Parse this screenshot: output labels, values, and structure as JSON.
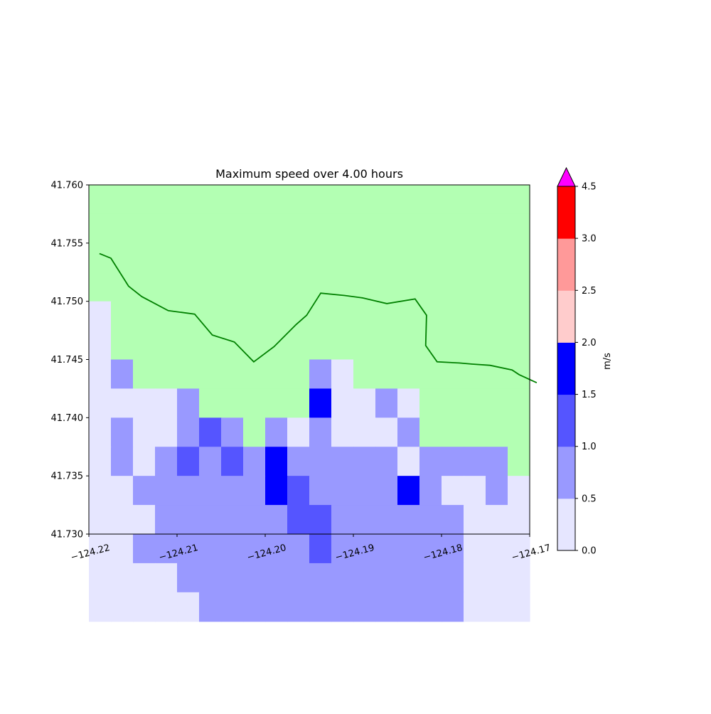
{
  "chart_data": {
    "type": "heatmap",
    "title": "Maximum speed over 4.00 hours",
    "xlabel": "",
    "ylabel": "",
    "xlim": [
      -124.22,
      -124.17
    ],
    "ylim": [
      41.73,
      41.76
    ],
    "xticks": [
      "−124.22",
      "−124.21",
      "−124.20",
      "−124.19",
      "−124.18",
      "−124.17"
    ],
    "xtick_values": [
      -124.22,
      -124.21,
      -124.2,
      -124.19,
      -124.18,
      -124.17
    ],
    "yticks": [
      "41.730",
      "41.735",
      "41.740",
      "41.745",
      "41.750",
      "41.755",
      "41.760"
    ],
    "ytick_values": [
      41.73,
      41.735,
      41.74,
      41.745,
      41.75,
      41.755,
      41.76
    ],
    "grid": false,
    "grid_cell_size": {
      "dx": 0.0025,
      "dy": 0.0025
    },
    "land_color": "#b3ffb3",
    "shoreline_color": "#008000",
    "colorbar": {
      "label": "m/s",
      "levels": [
        0.0,
        0.5,
        1.0,
        1.5,
        2.0,
        2.5,
        3.0,
        4.5
      ],
      "tick_labels": [
        "0.0",
        "0.5",
        "1.0",
        "1.5",
        "2.0",
        "2.5",
        "3.0",
        "4.5"
      ],
      "colors": [
        "#e6e6ff",
        "#9999ff",
        "#5555ff",
        "#0000ff",
        "#ffcccc",
        "#ff9999",
        "#ff0000"
      ],
      "extend_color": "#ff00ff"
    },
    "legend_rows_note": "rows from top (41.760) to bottom (41.730); columns from left (-124.22) to right (-124.17); L = land, numbers = colorbar bin index (0: 0.0-0.5, 1: 0.5-1.0, 2: 1.0-1.5, 3: 1.5-2.0)",
    "cells": [
      [
        "L",
        "L",
        "L",
        "L",
        "L",
        "L",
        "L",
        "L",
        "L",
        "L",
        "L",
        "L",
        "L",
        "L",
        "L",
        "L",
        "L",
        "L",
        "L",
        "L"
      ],
      [
        "L",
        "L",
        "L",
        "L",
        "L",
        "L",
        "L",
        "L",
        "L",
        "L",
        "L",
        "L",
        "L",
        "L",
        "L",
        "L",
        "L",
        "L",
        "L",
        "L"
      ],
      [
        "L",
        "L",
        "L",
        "L",
        "L",
        "L",
        "L",
        "L",
        "L",
        "L",
        "L",
        "L",
        "L",
        "L",
        "L",
        "L",
        "L",
        "L",
        "L",
        "L"
      ],
      [
        "L",
        "L",
        "L",
        "L",
        "L",
        "L",
        "L",
        "L",
        "L",
        "L",
        "L",
        "L",
        "L",
        "L",
        "L",
        "L",
        "L",
        "L",
        "L",
        "L"
      ],
      [
        0,
        "L",
        "L",
        "L",
        "L",
        "L",
        "L",
        "L",
        "L",
        "L",
        "L",
        "L",
        "L",
        "L",
        "L",
        "L",
        "L",
        "L",
        "L",
        "L"
      ],
      [
        0,
        "L",
        "L",
        "L",
        "L",
        "L",
        "L",
        "L",
        "L",
        "L",
        "L",
        "L",
        "L",
        "L",
        "L",
        "L",
        "L",
        "L",
        "L",
        "L"
      ],
      [
        0,
        1,
        "L",
        "L",
        "L",
        "L",
        "L",
        "L",
        "L",
        "L",
        1,
        0,
        "L",
        "L",
        "L",
        "L",
        "L",
        "L",
        "L",
        "L"
      ],
      [
        0,
        0,
        0,
        0,
        1,
        "L",
        "L",
        "L",
        "L",
        "L",
        3,
        0,
        0,
        1,
        0,
        "L",
        "L",
        "L",
        "L",
        "L"
      ],
      [
        0,
        1,
        0,
        0,
        1,
        2,
        1,
        "L",
        1,
        0,
        1,
        0,
        0,
        0,
        1,
        "L",
        "L",
        "L",
        "L",
        "L"
      ],
      [
        0,
        1,
        0,
        1,
        2,
        1,
        2,
        1,
        3,
        1,
        1,
        1,
        1,
        1,
        0,
        1,
        1,
        1,
        1,
        "L"
      ],
      [
        0,
        0,
        1,
        1,
        1,
        1,
        1,
        1,
        3,
        2,
        1,
        1,
        1,
        1,
        3,
        1,
        0,
        0,
        1,
        0
      ],
      [
        0,
        0,
        0,
        1,
        1,
        1,
        1,
        1,
        1,
        2,
        2,
        1,
        1,
        1,
        1,
        1,
        1,
        0,
        0,
        0
      ],
      [
        0,
        0,
        1,
        1,
        1,
        1,
        1,
        1,
        1,
        1,
        2,
        1,
        1,
        1,
        1,
        1,
        1,
        0,
        0,
        0
      ],
      [
        0,
        0,
        0,
        0,
        1,
        1,
        1,
        1,
        1,
        1,
        1,
        1,
        1,
        1,
        1,
        1,
        1,
        0,
        0,
        0
      ],
      [
        0,
        0,
        0,
        0,
        0,
        1,
        1,
        1,
        1,
        1,
        1,
        1,
        1,
        1,
        1,
        1,
        1,
        0,
        0,
        0
      ]
    ],
    "shoreline": [
      [
        -124.2188,
        41.7541
      ],
      [
        -124.2175,
        41.7537
      ],
      [
        -124.2155,
        41.7513
      ],
      [
        -124.214,
        41.7504
      ],
      [
        -124.211,
        41.7492
      ],
      [
        -124.208,
        41.7489
      ],
      [
        -124.206,
        41.7471
      ],
      [
        -124.2035,
        41.7465
      ],
      [
        -124.2013,
        41.7448
      ],
      [
        -124.199,
        41.7461
      ],
      [
        -124.1965,
        41.748
      ],
      [
        -124.1953,
        41.7488
      ],
      [
        -124.1937,
        41.7507
      ],
      [
        -124.191,
        41.7505
      ],
      [
        -124.189,
        41.7503
      ],
      [
        -124.1862,
        41.7498
      ],
      [
        -124.183,
        41.7502
      ],
      [
        -124.1817,
        41.7488
      ],
      [
        -124.1818,
        41.7462
      ],
      [
        -124.1805,
        41.7448
      ],
      [
        -124.178,
        41.7447
      ],
      [
        -124.1765,
        41.7446
      ],
      [
        -124.1745,
        41.7445
      ],
      [
        -124.172,
        41.7441
      ],
      [
        -124.1712,
        41.7437
      ],
      [
        -124.1692,
        41.743
      ]
    ]
  }
}
